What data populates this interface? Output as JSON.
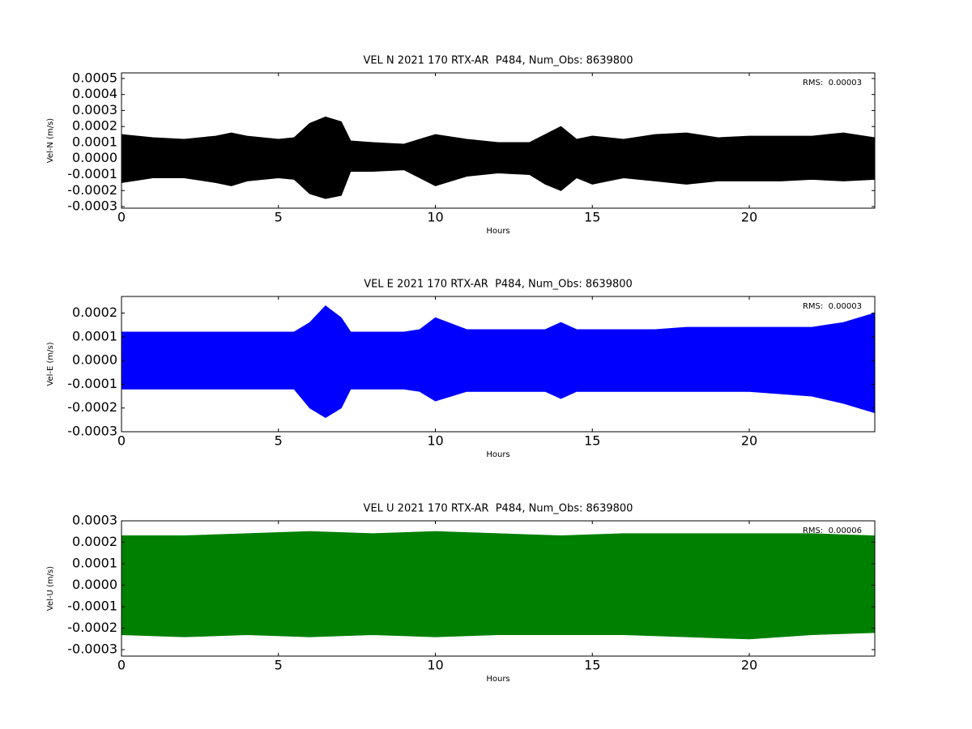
{
  "chart_data": [
    {
      "type": "band",
      "title": "VEL N 2021 170 RTX-AR  P484, Num_Obs: 8639800",
      "xlabel": "Hours",
      "ylabel": "Vel-N (m/s)",
      "annotation": "RMS:  0.00003",
      "annotation_color": "#0000ff",
      "color": "#000000",
      "x": [
        0,
        1,
        2,
        3,
        3.5,
        4,
        5,
        5.5,
        6,
        6.5,
        7,
        7.3,
        8,
        9,
        9.5,
        10,
        11,
        12,
        13,
        13.5,
        14,
        14.5,
        15,
        16,
        17,
        18,
        19,
        20,
        21,
        22,
        23,
        24
      ],
      "high": [
        0.00015,
        0.00013,
        0.00012,
        0.00014,
        0.00016,
        0.00014,
        0.00012,
        0.00013,
        0.00022,
        0.00026,
        0.00023,
        0.00011,
        0.0001,
        9e-05,
        0.00012,
        0.00015,
        0.00012,
        0.0001,
        0.0001,
        0.00015,
        0.0002,
        0.00012,
        0.00014,
        0.00012,
        0.00015,
        0.00016,
        0.00013,
        0.00014,
        0.00014,
        0.00014,
        0.00016,
        0.00013
      ],
      "low": [
        -0.00015,
        -0.00012,
        -0.00012,
        -0.00015,
        -0.00017,
        -0.00014,
        -0.00012,
        -0.00013,
        -0.00022,
        -0.00025,
        -0.00023,
        -8e-05,
        -8e-05,
        -7e-05,
        -0.00012,
        -0.00017,
        -0.00011,
        -9e-05,
        -0.0001,
        -0.00016,
        -0.0002,
        -0.00012,
        -0.00016,
        -0.00012,
        -0.00014,
        -0.00016,
        -0.00014,
        -0.00014,
        -0.00014,
        -0.00013,
        -0.00014,
        -0.00013
      ],
      "xlim": [
        0,
        24
      ],
      "xticks": [
        0,
        5,
        10,
        15,
        20
      ],
      "ylim": [
        -0.00031,
        0.000535
      ],
      "yticks": [
        -0.0003,
        -0.0002,
        -0.0001,
        {
          "value": 0,
          "label": "0.0000"
        },
        0.0001,
        0.0002,
        0.0003,
        0.0004,
        0.0005
      ]
    },
    {
      "type": "band",
      "title": "VEL E 2021 170 RTX-AR  P484, Num_Obs: 8639800",
      "xlabel": "Hours",
      "ylabel": "Vel-E (m/s)",
      "annotation": "RMS:  0.00003",
      "annotation_color": "#0000ff",
      "color": "#0000ff",
      "x": [
        0,
        1,
        2,
        3,
        3.5,
        4,
        5,
        5.5,
        6,
        6.5,
        7,
        7.3,
        8,
        9,
        9.5,
        10,
        11,
        12,
        13,
        13.5,
        14,
        14.5,
        15,
        16,
        17,
        18,
        19,
        20,
        21,
        22,
        23,
        24
      ],
      "high": [
        0.00012,
        0.00012,
        0.00012,
        0.00012,
        0.00012,
        0.00012,
        0.00012,
        0.00012,
        0.00016,
        0.00023,
        0.00018,
        0.00012,
        0.00012,
        0.00012,
        0.00013,
        0.00018,
        0.00013,
        0.00013,
        0.00013,
        0.00013,
        0.00016,
        0.00013,
        0.00013,
        0.00013,
        0.00013,
        0.00014,
        0.00014,
        0.00014,
        0.00014,
        0.00014,
        0.00016,
        0.0002
      ],
      "low": [
        -0.00012,
        -0.00012,
        -0.00012,
        -0.00012,
        -0.00012,
        -0.00012,
        -0.00012,
        -0.00012,
        -0.0002,
        -0.00024,
        -0.0002,
        -0.00012,
        -0.00012,
        -0.00012,
        -0.00013,
        -0.00017,
        -0.00013,
        -0.00013,
        -0.00013,
        -0.00013,
        -0.00016,
        -0.00013,
        -0.00013,
        -0.00013,
        -0.00013,
        -0.00013,
        -0.00013,
        -0.00013,
        -0.00014,
        -0.00015,
        -0.00018,
        -0.00022
      ],
      "xlim": [
        0,
        24
      ],
      "xticks": [
        0,
        5,
        10,
        15,
        20
      ],
      "ylim": [
        -0.0003,
        0.00027
      ],
      "yticks": [
        -0.0003,
        -0.0002,
        -0.0001,
        {
          "value": 0,
          "label": "0.0000"
        },
        0.0001,
        0.0002
      ]
    },
    {
      "type": "band",
      "title": "VEL U 2021 170 RTX-AR  P484, Num_Obs: 8639800",
      "xlabel": "Hours",
      "ylabel": "Vel-U (m/s)",
      "annotation": "RMS:  0.00006",
      "annotation_color": "#0000ff",
      "color": "#008000",
      "x": [
        0,
        2,
        4,
        6,
        8,
        10,
        12,
        14,
        16,
        18,
        20,
        22,
        24
      ],
      "high": [
        0.00023,
        0.00023,
        0.00024,
        0.00025,
        0.00024,
        0.00025,
        0.00024,
        0.00023,
        0.00024,
        0.00024,
        0.00024,
        0.00024,
        0.00023
      ],
      "low": [
        -0.00023,
        -0.00024,
        -0.00023,
        -0.00024,
        -0.00023,
        -0.00024,
        -0.00023,
        -0.00023,
        -0.00023,
        -0.00024,
        -0.00025,
        -0.00023,
        -0.00022
      ],
      "xlim": [
        0,
        24
      ],
      "xticks": [
        0,
        5,
        10,
        15,
        20
      ],
      "ylim": [
        -0.00033,
        0.0003
      ],
      "yticks": [
        -0.0003,
        -0.0002,
        -0.0001,
        {
          "value": 0,
          "label": "0.0000"
        },
        0.0001,
        0.0002,
        0.0003
      ]
    }
  ]
}
